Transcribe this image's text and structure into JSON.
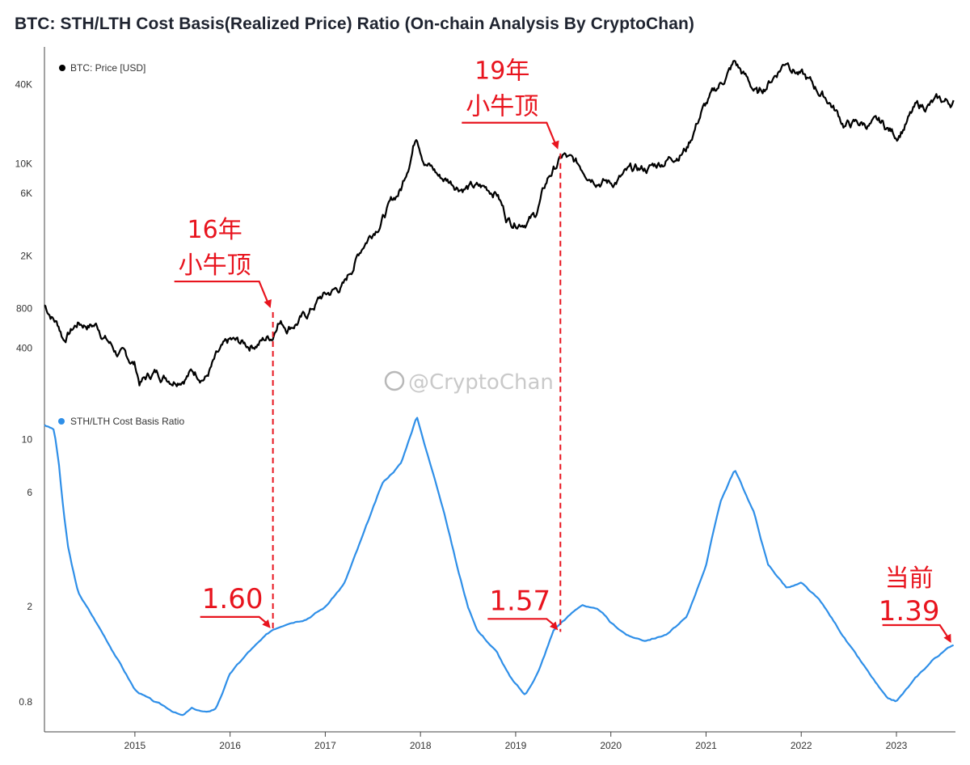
{
  "title": "BTC: STH/LTH Cost Basis(Realized Price) Ratio (On-chain Analysis By CryptoChan)",
  "watermark": "@CryptoChan",
  "colors": {
    "price": "#000000",
    "ratio": "#2f8fe8",
    "annotation": "#e8141e",
    "axis": "#333333"
  },
  "chart_data": [
    {
      "type": "line",
      "scale": "log",
      "legend": "BTC: Price [USD]",
      "legend_position": "top-left",
      "yticks": [
        {
          "label": "40K",
          "value": 40000
        },
        {
          "label": "10K",
          "value": 10000
        },
        {
          "label": "6K",
          "value": 6000
        },
        {
          "label": "2K",
          "value": 2000
        },
        {
          "label": "800",
          "value": 800
        },
        {
          "label": "400",
          "value": 400
        }
      ],
      "ylim": [
        150,
        75000
      ],
      "xlim": [
        2014.05,
        2023.62
      ],
      "x": [
        2014.05,
        2014.2,
        2014.25,
        2014.4,
        2014.6,
        2014.8,
        2015.0,
        2015.05,
        2015.2,
        2015.4,
        2015.6,
        2015.75,
        2015.85,
        2016.0,
        2016.2,
        2016.45,
        2016.5,
        2016.6,
        2016.8,
        2016.95,
        2017.0,
        2017.2,
        2017.4,
        2017.6,
        2017.8,
        2017.96,
        2018.05,
        2018.2,
        2018.4,
        2018.6,
        2018.8,
        2018.9,
        2018.96,
        2019.2,
        2019.35,
        2019.5,
        2019.6,
        2019.8,
        2020.0,
        2020.2,
        2020.4,
        2020.6,
        2020.8,
        2020.95,
        2021.1,
        2021.3,
        2021.55,
        2021.85,
        2022.1,
        2022.3,
        2022.45,
        2022.65,
        2022.85,
        2023.0,
        2023.2,
        2023.4,
        2023.6
      ],
      "y": [
        850,
        600,
        480,
        620,
        600,
        380,
        300,
        220,
        260,
        240,
        270,
        250,
        330,
        430,
        420,
        500,
        680,
        600,
        700,
        960,
        1000,
        1200,
        2500,
        4000,
        6500,
        17500,
        11000,
        8000,
        7000,
        6500,
        6300,
        4000,
        3700,
        4000,
        8000,
        11500,
        10000,
        8500,
        7200,
        8500,
        9200,
        11000,
        13500,
        25000,
        35000,
        58000,
        33000,
        63000,
        40000,
        30000,
        20000,
        20000,
        19500,
        16500,
        26000,
        29000,
        29300
      ]
    },
    {
      "type": "line",
      "scale": "log",
      "legend": "STH/LTH Cost Basis Ratio",
      "legend_position": "top-left",
      "yticks": [
        {
          "label": "10",
          "value": 10
        },
        {
          "label": "6",
          "value": 6
        },
        {
          "label": "2",
          "value": 2
        },
        {
          "label": "0.8",
          "value": 0.8
        }
      ],
      "ylim": [
        0.6,
        14
      ],
      "xlim": [
        2014.05,
        2023.62
      ],
      "x": [
        2014.05,
        2014.15,
        2014.2,
        2014.25,
        2014.3,
        2014.4,
        2014.6,
        2014.8,
        2015.0,
        2015.2,
        2015.35,
        2015.5,
        2015.6,
        2015.75,
        2015.85,
        2016.0,
        2016.2,
        2016.45,
        2016.6,
        2016.8,
        2017.0,
        2017.2,
        2017.4,
        2017.6,
        2017.8,
        2017.96,
        2018.1,
        2018.25,
        2018.4,
        2018.5,
        2018.6,
        2018.8,
        2018.95,
        2019.1,
        2019.25,
        2019.4,
        2019.5,
        2019.7,
        2019.9,
        2020.0,
        2020.2,
        2020.35,
        2020.5,
        2020.6,
        2020.8,
        2021.0,
        2021.15,
        2021.3,
        2021.5,
        2021.65,
        2021.85,
        2022.0,
        2022.2,
        2022.4,
        2022.55,
        2022.75,
        2022.9,
        2023.0,
        2023.2,
        2023.4,
        2023.6
      ],
      "y": [
        11.5,
        11.0,
        8.0,
        5.0,
        3.5,
        2.3,
        1.7,
        1.25,
        0.9,
        0.8,
        0.75,
        0.7,
        0.75,
        0.72,
        0.75,
        1.05,
        1.3,
        1.6,
        1.72,
        1.8,
        2.0,
        2.5,
        4.0,
        6.5,
        8.0,
        12.5,
        8.0,
        5.0,
        2.8,
        2.0,
        1.6,
        1.3,
        1.0,
        0.85,
        1.1,
        1.6,
        1.75,
        2.05,
        1.9,
        1.7,
        1.5,
        1.45,
        1.5,
        1.55,
        1.8,
        3.0,
        5.5,
        7.5,
        5.0,
        3.0,
        2.4,
        2.5,
        2.1,
        1.6,
        1.3,
        1.0,
        0.82,
        0.8,
        1.0,
        1.22,
        1.39
      ]
    }
  ],
  "xaxis": {
    "labels": [
      "2015",
      "2016",
      "2017",
      "2018",
      "2019",
      "2020",
      "2021",
      "2022",
      "2023"
    ],
    "values": [
      2015,
      2016,
      2017,
      2018,
      2019,
      2020,
      2021,
      2022,
      2023
    ]
  },
  "annotations": [
    {
      "id": "top16",
      "lines": [
        "16年",
        "小牛顶"
      ],
      "x": 2016.45,
      "price": 750,
      "ratio_label": "1.60",
      "ratio": 1.6
    },
    {
      "id": "top19",
      "lines": [
        "19年",
        "小牛顶"
      ],
      "x": 2019.47,
      "price": 12000,
      "ratio_label": "1.57",
      "ratio": 1.57
    },
    {
      "id": "current",
      "lines": [
        "当前",
        "1.39"
      ],
      "x": 2023.6,
      "ratio": 1.39
    }
  ]
}
